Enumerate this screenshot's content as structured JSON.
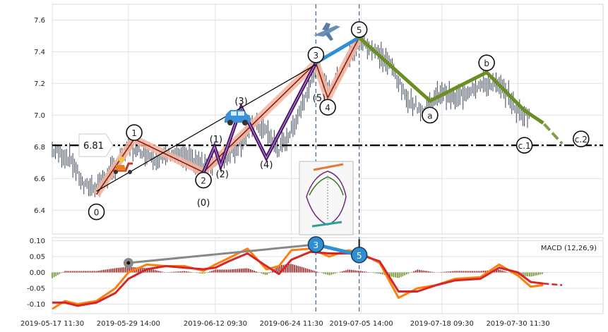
{
  "chart_data": [
    {
      "type": "line",
      "panel": "price",
      "ylim": [
        6.25,
        7.7
      ],
      "yticks": [
        6.4,
        6.6,
        6.8,
        7.0,
        7.2,
        7.4,
        7.6
      ],
      "grid": true,
      "horizontal_line": {
        "value": 6.81,
        "label": "6.81"
      },
      "series": [
        {
          "name": "",
          "values": [
            [
              "2019-05-17 11:30",
              6.78
            ],
            [
              "2019-05-20 12:00",
              6.72
            ],
            [
              "2019-05-22 12:00",
              6.55
            ],
            [
              "2019-05-24 12:00",
              6.55
            ],
            [
              "2019-05-27 12:00",
              6.67
            ],
            [
              "2019-05-29 14:00",
              6.8
            ],
            [
              "2019-05-31 12:00",
              6.78
            ],
            [
              "2019-06-03 12:00",
              6.72
            ],
            [
              "2019-06-05 12:00",
              6.76
            ],
            [
              "2019-06-07 12:00",
              6.73
            ],
            [
              "2019-06-10 12:00",
              6.68
            ],
            [
              "2019-06-12 09:30",
              6.7
            ],
            [
              "2019-06-14 12:00",
              6.75
            ],
            [
              "2019-06-16 12:00",
              6.83
            ],
            [
              "2019-06-18 12:00",
              6.95
            ],
            [
              "2019-06-20 12:00",
              6.9
            ],
            [
              "2019-06-22 12:00",
              6.78
            ],
            [
              "2019-06-24 11:30",
              6.9
            ],
            [
              "2019-06-26 12:00",
              7.1
            ],
            [
              "2019-06-28 12:00",
              7.32
            ],
            [
              "2019-06-30 12:00",
              7.15
            ],
            [
              "2019-07-02 12:00",
              7.28
            ],
            [
              "2019-07-04 12:00",
              7.42
            ],
            [
              "2019-07-05 14:00",
              7.47
            ],
            [
              "2019-07-08 12:00",
              7.38
            ],
            [
              "2019-07-10 12:00",
              7.3
            ],
            [
              "2019-07-12 12:00",
              7.12
            ],
            [
              "2019-07-15 12:00",
              7.02
            ],
            [
              "2019-07-18 09:30",
              7.15
            ],
            [
              "2019-07-20 12:00",
              7.1
            ],
            [
              "2019-07-23 12:00",
              7.18
            ],
            [
              "2019-07-26 12:00",
              7.2
            ],
            [
              "2019-07-28 12:00",
              7.15
            ],
            [
              "2019-07-30 11:30",
              7.02
            ],
            [
              "2019-08-01 12:00",
              7.0
            ]
          ]
        },
        {
          "name": "",
          "values": [
            [
              "2019-05-24 12:00",
              6.5
            ],
            [
              "2019-05-30 12:00",
              6.85
            ],
            [
              "2019-06-10 12:00",
              6.64
            ],
            [
              "2019-06-28 09:00",
              7.33
            ],
            [
              "2019-06-30 06:00",
              7.11
            ],
            [
              "2019-07-05 06:00",
              7.49
            ]
          ]
        },
        {
          "name": "",
          "values": [
            [
              "2019-06-10 12:00",
              6.64
            ],
            [
              "2019-06-12 06:00",
              6.8
            ],
            [
              "2019-06-13 06:00",
              6.68
            ],
            [
              "2019-06-16 12:00",
              7.05
            ],
            [
              "2019-06-20 12:00",
              6.73
            ],
            [
              "2019-06-28 09:00",
              7.33
            ]
          ]
        },
        {
          "name": "",
          "values": [
            [
              "2019-06-28 09:00",
              7.33
            ],
            [
              "2019-07-05 06:00",
              7.49
            ]
          ]
        },
        {
          "name": "",
          "values": [
            [
              "2019-07-05 06:00",
              7.49
            ],
            [
              "2019-07-16 12:00",
              7.09
            ],
            [
              "2019-07-25 12:00",
              7.27
            ],
            [
              "2019-07-31 12:00",
              7.03
            ],
            [
              "2019-08-03 12:00",
              6.95
            ],
            [
              "2019-08-06 12:00",
              6.82
            ]
          ]
        }
      ],
      "wave_labels": [
        {
          "label": "0",
          "x": "2019-05-24 12:00",
          "y": 6.39
        },
        {
          "label": "1",
          "x": "2019-05-30 12:00",
          "y": 6.89
        },
        {
          "label": "2",
          "x": "2019-06-10 12:00",
          "y": 6.59
        },
        {
          "label": "(0)",
          "x": "2019-06-10 12:00",
          "y": 6.45
        },
        {
          "label": "(1)",
          "x": "2019-06-12 12:00",
          "y": 6.85
        },
        {
          "label": "(2)",
          "x": "2019-06-13 12:00",
          "y": 6.63
        },
        {
          "label": "(3)",
          "x": "2019-06-16 12:00",
          "y": 7.09
        },
        {
          "label": "(4)",
          "x": "2019-06-20 12:00",
          "y": 6.69
        },
        {
          "label": "3",
          "x": "2019-06-28 09:00",
          "y": 7.38
        },
        {
          "label": "(5)",
          "x": "2019-06-28 21:00",
          "y": 7.11
        },
        {
          "label": "4",
          "x": "2019-06-30 06:00",
          "y": 7.05
        },
        {
          "label": "5",
          "x": "2019-07-05 06:00",
          "y": 7.54
        },
        {
          "label": "a",
          "x": "2019-07-16 12:00",
          "y": 7.0
        },
        {
          "label": "b",
          "x": "2019-07-25 12:00",
          "y": 7.33
        },
        {
          "label": "c.1",
          "x": "2019-07-31 12:00",
          "y": 6.81
        },
        {
          "label": "c.2",
          "x": "2019-08-09 12:00",
          "y": 6.85
        }
      ]
    },
    {
      "type": "line",
      "panel": "macd",
      "title": "MACD (12,26,9)",
      "ylim": [
        -0.13,
        0.11
      ],
      "yticks": [
        -0.1,
        -0.05,
        0.0,
        0.05,
        0.1
      ],
      "xticks": [
        "2019-05-17 11:30",
        "2019-05-29 14:00",
        "2019-06-12 09:30",
        "2019-06-24 11:30",
        "2019-07-05 14:00",
        "2019-07-18 09:30",
        "2019-07-30 11:30"
      ],
      "series": [
        {
          "name": "",
          "color": "#ff7f0e",
          "values": [
            [
              "2019-05-17 11:30",
              -0.115
            ],
            [
              "2019-05-19 12:00",
              -0.09
            ],
            [
              "2019-05-21 12:00",
              -0.1
            ],
            [
              "2019-05-24 12:00",
              -0.09
            ],
            [
              "2019-05-27 12:00",
              -0.05
            ],
            [
              "2019-05-29 14:00",
              0.0
            ],
            [
              "2019-06-01 12:00",
              0.025
            ],
            [
              "2019-06-04 12:00",
              0.02
            ],
            [
              "2019-06-07 12:00",
              0.02
            ],
            [
              "2019-06-10 12:00",
              0.005
            ],
            [
              "2019-06-12 09:30",
              0.025
            ],
            [
              "2019-06-14 12:00",
              0.045
            ],
            [
              "2019-06-17 12:00",
              0.075
            ],
            [
              "2019-06-20 12:00",
              0.01
            ],
            [
              "2019-06-22 12:00",
              0.02
            ],
            [
              "2019-06-24 11:30",
              0.07
            ],
            [
              "2019-06-27 12:00",
              0.075
            ],
            [
              "2019-06-30 12:00",
              0.05
            ],
            [
              "2019-07-03 12:00",
              0.07
            ],
            [
              "2019-07-05 14:00",
              0.06
            ],
            [
              "2019-07-08 12:00",
              0.03
            ],
            [
              "2019-07-11 12:00",
              -0.08
            ],
            [
              "2019-07-14 12:00",
              -0.05
            ],
            [
              "2019-07-17 12:00",
              -0.04
            ],
            [
              "2019-07-20 12:00",
              -0.02
            ],
            [
              "2019-07-24 12:00",
              -0.015
            ],
            [
              "2019-07-27 12:00",
              0.025
            ],
            [
              "2019-07-30 11:30",
              -0.01
            ],
            [
              "2019-08-01 12:00",
              -0.045
            ],
            [
              "2019-08-03 12:00",
              -0.04
            ]
          ]
        },
        {
          "name": "",
          "color": "#d62728",
          "values": [
            [
              "2019-05-17 11:30",
              -0.095
            ],
            [
              "2019-05-19 12:00",
              -0.095
            ],
            [
              "2019-05-21 12:00",
              -0.105
            ],
            [
              "2019-05-24 12:00",
              -0.095
            ],
            [
              "2019-05-27 12:00",
              -0.065
            ],
            [
              "2019-05-29 14:00",
              -0.02
            ],
            [
              "2019-06-01 12:00",
              0.01
            ],
            [
              "2019-06-04 12:00",
              0.02
            ],
            [
              "2019-06-07 12:00",
              0.015
            ],
            [
              "2019-06-10 12:00",
              0.01
            ],
            [
              "2019-06-12 09:30",
              0.015
            ],
            [
              "2019-06-14 12:00",
              0.035
            ],
            [
              "2019-06-17 12:00",
              0.06
            ],
            [
              "2019-06-20 12:00",
              0.02
            ],
            [
              "2019-06-22 12:00",
              -0.005
            ],
            [
              "2019-06-24 11:30",
              0.04
            ],
            [
              "2019-06-27 12:00",
              0.065
            ],
            [
              "2019-06-30 12:00",
              0.06
            ],
            [
              "2019-07-03 12:00",
              0.06
            ],
            [
              "2019-07-05 14:00",
              0.055
            ],
            [
              "2019-07-08 12:00",
              0.035
            ],
            [
              "2019-07-11 12:00",
              -0.06
            ],
            [
              "2019-07-14 12:00",
              -0.06
            ],
            [
              "2019-07-17 12:00",
              -0.04
            ],
            [
              "2019-07-20 12:00",
              -0.025
            ],
            [
              "2019-07-24 12:00",
              -0.02
            ],
            [
              "2019-07-27 12:00",
              0.015
            ],
            [
              "2019-07-30 11:30",
              0.0
            ],
            [
              "2019-08-01 12:00",
              -0.03
            ],
            [
              "2019-08-03 12:00",
              -0.035
            ],
            [
              "2019-08-06 12:00",
              -0.04
            ]
          ]
        }
      ],
      "markers": [
        {
          "label": "3",
          "x": "2019-06-28 09:00",
          "y": 0.088
        },
        {
          "label": "5",
          "x": "2019-07-05 06:00",
          "y": 0.055
        }
      ]
    }
  ]
}
